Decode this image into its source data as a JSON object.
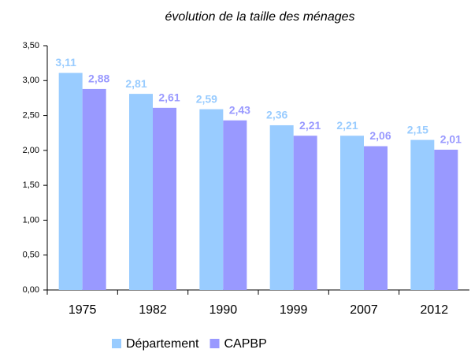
{
  "chart_data": {
    "type": "bar",
    "title": "évolution de la taille des ménages",
    "categories": [
      "1975",
      "1982",
      "1990",
      "1999",
      "2007",
      "2012"
    ],
    "series": [
      {
        "name": "Département",
        "color": "#99ccff",
        "values": [
          3.11,
          2.81,
          2.59,
          2.36,
          2.21,
          2.15
        ],
        "value_labels": [
          "3,11",
          "2,81",
          "2,59",
          "2,36",
          "2,21",
          "2,15"
        ]
      },
      {
        "name": "CAPBP",
        "color": "#9999ff",
        "values": [
          2.88,
          2.61,
          2.43,
          2.21,
          2.06,
          2.01
        ],
        "value_labels": [
          "2,88",
          "2,61",
          "2,43",
          "2,21",
          "2,06",
          "2,01"
        ]
      }
    ],
    "ylim": [
      0,
      3.5
    ],
    "yticks": [
      {
        "value": 0,
        "label": "0,00"
      },
      {
        "value": 0.5,
        "label": "0,50"
      },
      {
        "value": 1,
        "label": "1,00"
      },
      {
        "value": 1.5,
        "label": "1,50"
      },
      {
        "value": 2,
        "label": "2,00"
      },
      {
        "value": 2.5,
        "label": "2,50"
      },
      {
        "value": 3,
        "label": "3,00"
      },
      {
        "value": 3.5,
        "label": "3,50"
      }
    ],
    "grid": false,
    "legend": "bottom"
  }
}
